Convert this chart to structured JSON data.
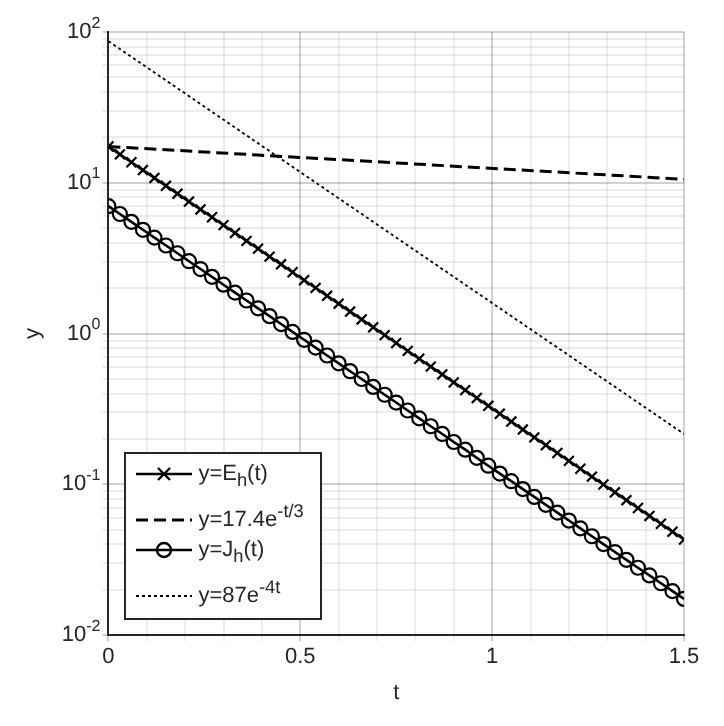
{
  "chart_data": {
    "type": "line",
    "xlabel": "t",
    "ylabel": "y",
    "log": "y",
    "grid": true,
    "legend": "bottom left",
    "xlim": [
      0,
      1.5
    ],
    "ylim": [
      0.01,
      100
    ],
    "xticks": [
      0,
      {
        "value": 0.1,
        "label": null
      },
      {
        "value": 0.2,
        "label": null
      },
      {
        "value": 0.3,
        "label": null
      },
      {
        "value": 0.4,
        "label": null
      },
      0.5,
      {
        "value": 0.6,
        "label": null
      },
      {
        "value": 0.7,
        "label": null
      },
      {
        "value": 0.8,
        "label": null
      },
      {
        "value": 0.9,
        "label": null
      },
      1,
      {
        "value": 1.1,
        "label": null
      },
      {
        "value": 1.2,
        "label": null
      },
      {
        "value": 1.3,
        "label": null
      },
      {
        "value": 1.4,
        "label": null
      },
      1.5
    ],
    "yticks": [
      {
        "value": 0.01,
        "label": "10$^{-2}$"
      },
      {
        "value": 0.02,
        "label": null
      },
      {
        "value": 0.03,
        "label": null
      },
      {
        "value": 0.04,
        "label": null
      },
      {
        "value": 0.05,
        "label": null
      },
      {
        "value": 0.06,
        "label": null
      },
      {
        "value": 0.07,
        "label": null
      },
      {
        "value": 0.08,
        "label": null
      },
      {
        "value": 0.09,
        "label": null
      },
      {
        "value": 0.1,
        "label": "10$^{-1}$"
      },
      {
        "value": 0.2,
        "label": null
      },
      {
        "value": 0.3,
        "label": null
      },
      {
        "value": 0.4,
        "label": null
      },
      {
        "value": 0.5,
        "label": null
      },
      {
        "value": 0.6,
        "label": null
      },
      {
        "value": 0.7,
        "label": null
      },
      {
        "value": 0.8,
        "label": null
      },
      {
        "value": 0.9,
        "label": null
      },
      {
        "value": 1,
        "label": "10$^{0}$"
      },
      {
        "value": 2,
        "label": null
      },
      {
        "value": 3,
        "label": null
      },
      {
        "value": 4,
        "label": null
      },
      {
        "value": 5,
        "label": null
      },
      {
        "value": 6,
        "label": null
      },
      {
        "value": 7,
        "label": null
      },
      {
        "value": 8,
        "label": null
      },
      {
        "value": 9,
        "label": null
      },
      {
        "value": 10,
        "label": "10$^{1}$"
      },
      {
        "value": 20,
        "label": null
      },
      {
        "value": 30,
        "label": null
      },
      {
        "value": 40,
        "label": null
      },
      {
        "value": 50,
        "label": null
      },
      {
        "value": 60,
        "label": null
      },
      {
        "value": 70,
        "label": null
      },
      {
        "value": 80,
        "label": null
      },
      {
        "value": 90,
        "label": null
      },
      {
        "value": 100,
        "label": "10$^{2}$"
      }
    ],
    "series": [
      {
        "name": "y=E$_{h}$(t)",
        "color": "#000000",
        "marker": "cross",
        "line_style": "solid",
        "x": [
          0,
          0.03,
          0.06,
          0.09,
          0.12,
          0.15,
          0.18,
          0.21,
          0.24,
          0.27,
          0.3,
          0.33,
          0.36,
          0.39,
          0.42,
          0.45,
          0.48,
          0.51,
          0.54,
          0.57,
          0.6,
          0.63,
          0.66,
          0.69,
          0.72,
          0.75,
          0.78,
          0.81,
          0.84,
          0.87,
          0.9,
          0.93,
          0.96,
          0.99,
          1.02,
          1.05,
          1.08,
          1.11,
          1.14,
          1.17,
          1.2,
          1.23,
          1.26,
          1.29,
          1.32,
          1.35,
          1.38,
          1.41,
          1.44,
          1.47,
          1.5
        ],
        "values": [
          17.4,
          15.43,
          13.69,
          12.14,
          10.77,
          9.55,
          8.47,
          7.51,
          6.66,
          5.91,
          5.24,
          4.65,
          4.12,
          3.66,
          3.24,
          2.88,
          2.55,
          2.26,
          2.01,
          1.78,
          1.579,
          1.4,
          1.242,
          1.101,
          0.977,
          0.866,
          0.768,
          0.681,
          0.604,
          0.536,
          0.475,
          0.422,
          0.374,
          0.332,
          0.294,
          0.261,
          0.231,
          0.205,
          0.182,
          0.1615,
          0.1432,
          0.127,
          0.1126,
          0.0999,
          0.0886,
          0.0786,
          0.0697,
          0.0618,
          0.0548,
          0.0486,
          0.0431
        ]
      },
      {
        "name": "y=17.4e$^{-t/3}$",
        "color": "#000000",
        "marker": "none",
        "line_style": "dashed",
        "x": [
          0,
          1.5
        ],
        "values": [
          17.4,
          10.55
        ]
      },
      {
        "name": "y=J$_{h}$(t)",
        "color": "#000000",
        "marker": "circle",
        "line_style": "solid",
        "x": [
          0,
          0.03,
          0.06,
          0.09,
          0.12,
          0.15,
          0.18,
          0.21,
          0.24,
          0.27,
          0.3,
          0.33,
          0.36,
          0.39,
          0.42,
          0.45,
          0.48,
          0.51,
          0.54,
          0.57,
          0.6,
          0.63,
          0.66,
          0.69,
          0.72,
          0.75,
          0.78,
          0.81,
          0.84,
          0.87,
          0.9,
          0.93,
          0.96,
          0.99,
          1.02,
          1.05,
          1.08,
          1.11,
          1.14,
          1.17,
          1.2,
          1.23,
          1.26,
          1.29,
          1.32,
          1.35,
          1.38,
          1.41,
          1.44,
          1.47,
          1.5
        ],
        "values": [
          7,
          6.21,
          5.51,
          4.88,
          4.33,
          3.84,
          3.41,
          3.02,
          2.68,
          2.38,
          2.11,
          1.87,
          1.658,
          1.471,
          1.305,
          1.157,
          1.026,
          0.91,
          0.807,
          0.716,
          0.635,
          0.563,
          0.5,
          0.443,
          0.393,
          0.349,
          0.309,
          0.274,
          0.243,
          0.216,
          0.191,
          0.17,
          0.15,
          0.133,
          0.118,
          0.105,
          0.0931,
          0.0826,
          0.0732,
          0.065,
          0.0576,
          0.0511,
          0.0453,
          0.0402,
          0.0356,
          0.0316,
          0.028,
          0.0249,
          0.0221,
          0.0196,
          0.0174
        ]
      },
      {
        "name": "y=87e$^{-4t}$",
        "color": "#000000",
        "marker": "none",
        "line_style": "dotted",
        "x": [
          0,
          1.5
        ],
        "values": [
          87,
          0.216
        ]
      }
    ]
  }
}
